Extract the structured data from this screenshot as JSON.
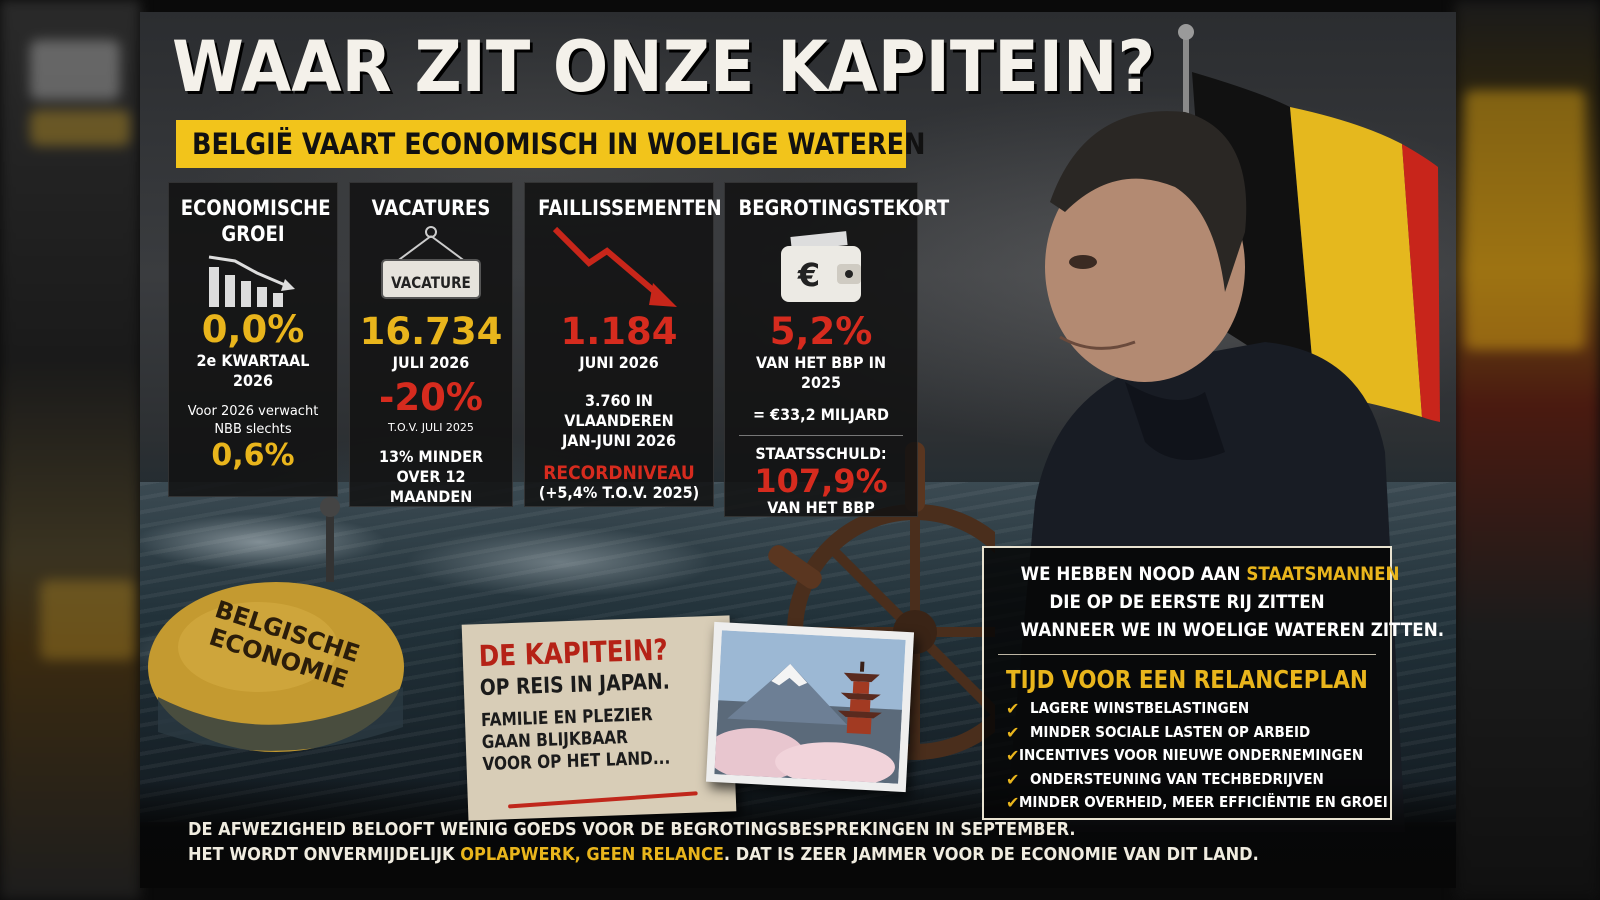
{
  "title": "WAAR ZIT ONZE KAPITEIN?",
  "subtitle": "BELGIË VAART ECONOMISCH IN WOELIGE WATEREN",
  "cards": [
    {
      "heading_line1": "ECONOMISCHE",
      "heading_line2": "GROEI",
      "value": "0,0%",
      "period": "2e KWARTAAL 2026",
      "note_line1": "Voor 2026 verwacht",
      "note_line2": "NBB slechts",
      "note_value": "0,6%"
    },
    {
      "heading": "VACATURES",
      "sign_text": "VACATURE",
      "value": "16.734",
      "period": "JULI 2026",
      "change": "-20%",
      "change_ref": "T.O.V. JULI 2025",
      "note_line1": "13% MINDER",
      "note_line2": "OVER 12 MAANDEN"
    },
    {
      "heading": "FAILLISSEMENTEN",
      "value": "1.184",
      "period": "JUNI 2026",
      "note_line1": "3.760 IN VLAANDEREN",
      "note_line2": "JAN-JUNI 2026",
      "record": "RECORDNIVEAU",
      "record_note": "(+5,4% T.O.V. 2025)"
    },
    {
      "heading": "BEGROTINGSTEKORT",
      "value": "5,2%",
      "period": "VAN HET BBP IN 2025",
      "amount": "= €33,2 MILJARD",
      "debt_label": "STAATSSCHULD:",
      "debt_value": "107,9%",
      "debt_ref": "VAN HET BBP"
    }
  ],
  "buoy": {
    "line1": "BELGISCHE",
    "line2": "ECONOMIE"
  },
  "captain_note": {
    "question": "DE KAPITEIN?",
    "answer": "OP REIS IN JAPAN.",
    "line1": "FAMILIE EN PLEZIER",
    "line2": "GAAN BLIJKBAAR",
    "line3": "VOOR OP HET LAND..."
  },
  "quote": {
    "line1_pre": "WE HEBBEN NOOD AAN ",
    "line1_highlight": "STAATSMANNEN",
    "line2": "DIE OP DE EERSTE RIJ ZITTEN",
    "line3": "WANNEER WE IN WOELIGE WATEREN ZITTEN."
  },
  "plan": {
    "title": "TIJD VOOR EEN RELANCEPLAN",
    "items": [
      "LAGERE WINSTBELASTINGEN",
      "MINDER SOCIALE LASTEN OP ARBEID",
      "INCENTIVES VOOR NIEUWE ONDERNEMINGEN",
      "ONDERSTEUNING VAN TECHBEDRIJVEN",
      "MINDER OVERHEID, MEER EFFICIËNTIE EN GROEI"
    ]
  },
  "footer": {
    "line1": "DE AFWEZIGHEID BELOOFT WEINIG GOEDS VOOR DE BEGROTINGSBESPREKINGEN IN SEPTEMBER.",
    "line2_pre": "HET WORDT ONVERMIJDELIJK ",
    "line2_hl1": "OPLAPWERK",
    "line2_mid": ", ",
    "line2_hl2": "GEEN RELANCE",
    "line2_post": ". DAT IS ZEER JAMMER VOOR DE ECONOMIE VAN DIT LAND."
  },
  "colors": {
    "accent_yellow": "#e9b51c",
    "banner_yellow": "#f2c41b",
    "alert_red": "#d62b1e",
    "flag_black": "#111111",
    "flag_yellow": "#e5b81e",
    "flag_red": "#c8251b"
  }
}
